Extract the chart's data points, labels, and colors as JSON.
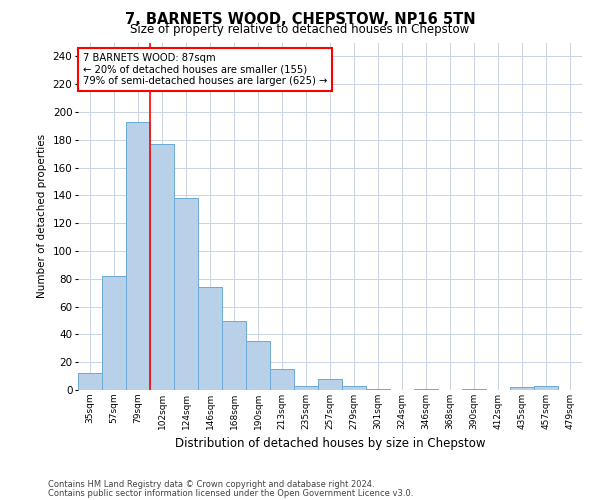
{
  "title": "7, BARNETS WOOD, CHEPSTOW, NP16 5TN",
  "subtitle": "Size of property relative to detached houses in Chepstow",
  "xlabel": "Distribution of detached houses by size in Chepstow",
  "ylabel": "Number of detached properties",
  "categories": [
    "35sqm",
    "57sqm",
    "79sqm",
    "102sqm",
    "124sqm",
    "146sqm",
    "168sqm",
    "190sqm",
    "213sqm",
    "235sqm",
    "257sqm",
    "279sqm",
    "301sqm",
    "324sqm",
    "346sqm",
    "368sqm",
    "390sqm",
    "412sqm",
    "435sqm",
    "457sqm",
    "479sqm"
  ],
  "values": [
    12,
    82,
    193,
    177,
    138,
    74,
    50,
    35,
    15,
    3,
    8,
    3,
    1,
    0,
    1,
    0,
    1,
    0,
    2,
    3,
    0
  ],
  "bar_color": "#b8d0e8",
  "bar_edge_color": "#6aaad4",
  "property_line_label": "7 BARNETS WOOD: 87sqm",
  "annotation_line1": "← 20% of detached houses are smaller (155)",
  "annotation_line2": "79% of semi-detached houses are larger (625) →",
  "ylim": [
    0,
    250
  ],
  "yticks": [
    0,
    20,
    40,
    60,
    80,
    100,
    120,
    140,
    160,
    180,
    200,
    220,
    240
  ],
  "footer1": "Contains HM Land Registry data © Crown copyright and database right 2024.",
  "footer2": "Contains public sector information licensed under the Open Government Licence v3.0.",
  "bg_color": "#ffffff",
  "grid_color": "#c8d4e4"
}
